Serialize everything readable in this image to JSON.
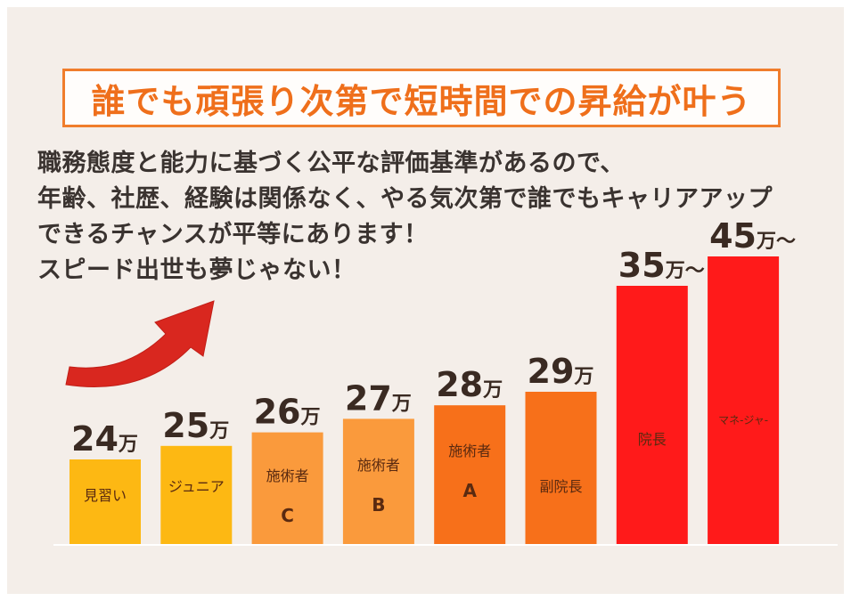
{
  "title": "誰でも頑張り次第で短時間での昇給が叶う",
  "description": [
    "職務態度と能力に基づく公平な評価基準があるので、",
    "年齢、社歴、経験は関係なく、やる気次第で誰でもキャリアアップ",
    "できるチャンスが平等にあります！",
    "スピード出世も夢じゃない！"
  ],
  "colors": {
    "title": "#ef6f1b",
    "background": "#f4eee9",
    "arrow": "#d9271f"
  },
  "icons": {
    "arrow": "curved-arrow-icon"
  },
  "chart_data": {
    "type": "bar",
    "unit_label": "万",
    "categories": [
      "見習い",
      "ジュニア",
      "施術者 C",
      "施術者 B",
      "施術者 A",
      "副院長",
      "院長",
      "マネージャー"
    ],
    "bars": [
      {
        "label": "見習い",
        "grade": "",
        "value": 24,
        "suffix": "",
        "color": "#fdb813"
      },
      {
        "label": "ジュニア",
        "grade": "",
        "value": 25,
        "suffix": "",
        "color": "#fdb813"
      },
      {
        "label": "施術者",
        "grade": "C",
        "value": 26,
        "suffix": "",
        "color": "#fa9a3c"
      },
      {
        "label": "施術者",
        "grade": "B",
        "value": 27,
        "suffix": "",
        "color": "#fa9a3c"
      },
      {
        "label": "施術者",
        "grade": "A",
        "value": 28,
        "suffix": "",
        "color": "#f7701a"
      },
      {
        "label": "副院長",
        "grade": "",
        "value": 29,
        "suffix": "",
        "color": "#f7701a"
      },
      {
        "label": "院長",
        "grade": "",
        "value": 35,
        "suffix": "～",
        "color": "#ff1a1a"
      },
      {
        "label": "マネ-ジャ-",
        "grade": "",
        "value": 45,
        "suffix": "～",
        "color": "#ff1a1a"
      }
    ]
  }
}
